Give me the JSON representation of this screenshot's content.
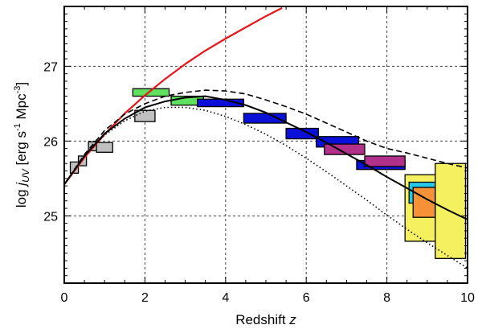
{
  "chart_data": {
    "type": "line",
    "xlabel": "Redshift",
    "xlabel_var": "z",
    "ylabel_prefix": "log ",
    "ylabel_sym": "j",
    "ylabel_sub": "UV",
    "ylabel_unit_a": " [erg s",
    "ylabel_unit_sup1": "-1",
    "ylabel_unit_b": " Mpc",
    "ylabel_unit_sup2": "-3",
    "ylabel_unit_c": "]",
    "xlim": [
      0,
      10
    ],
    "ylim": [
      24.1,
      27.8
    ],
    "grid": true,
    "x_ticks": [
      0,
      2,
      4,
      6,
      8,
      10
    ],
    "y_ticks": [
      25,
      26,
      27
    ],
    "colors": {
      "red_curve": "#e8141b",
      "gray": "#c0c0c0",
      "green": "#5fe05f",
      "blue": "#0a10d8",
      "magenta": "#b0308a",
      "cyan": "#25c8e8",
      "orange": "#f59238",
      "yellow": "#f4f060"
    },
    "series": [
      {
        "style": "red",
        "x": [
          0.0,
          0.5,
          1.0,
          1.5,
          2.0,
          2.5,
          3.0,
          3.5,
          4.0,
          4.5,
          5.0,
          5.4
        ],
        "y": [
          25.42,
          25.78,
          26.09,
          26.37,
          26.61,
          26.83,
          27.03,
          27.21,
          27.37,
          27.52,
          27.67,
          27.78
        ]
      },
      {
        "style": "solid",
        "x": [
          0.0,
          0.5,
          1.0,
          1.5,
          2.0,
          2.5,
          3.0,
          3.5,
          4.0,
          4.5,
          5.0,
          5.5,
          6.0,
          6.5,
          7.0,
          7.5,
          8.0,
          8.5,
          9.0,
          9.5,
          10.0
        ],
        "y": [
          25.42,
          25.8,
          26.1,
          26.3,
          26.45,
          26.53,
          26.58,
          26.6,
          26.55,
          26.48,
          26.38,
          26.25,
          26.12,
          25.98,
          25.83,
          25.68,
          25.52,
          25.37,
          25.22,
          25.08,
          24.95
        ]
      },
      {
        "style": "dashed",
        "x": [
          0.0,
          0.5,
          1.0,
          1.5,
          2.0,
          2.5,
          3.0,
          3.5,
          4.0,
          4.5,
          5.0,
          5.5,
          6.0,
          6.5,
          7.0,
          7.5,
          8.0,
          8.5,
          9.0,
          9.5,
          10.0
        ],
        "y": [
          25.42,
          25.82,
          26.14,
          26.36,
          26.5,
          26.6,
          26.65,
          26.68,
          26.67,
          26.63,
          26.55,
          26.46,
          26.36,
          26.24,
          26.12,
          26.0,
          25.9,
          25.84,
          25.77,
          25.7,
          25.64
        ]
      },
      {
        "style": "dotted",
        "x": [
          0.0,
          0.5,
          1.0,
          1.5,
          2.0,
          2.5,
          3.0,
          3.5,
          4.0,
          4.5,
          5.0,
          5.5,
          6.0,
          6.5,
          7.0,
          7.5,
          8.0,
          8.5,
          9.0,
          9.5,
          10.0
        ],
        "y": [
          25.42,
          25.8,
          26.08,
          26.27,
          26.4,
          26.45,
          26.45,
          26.41,
          26.33,
          26.22,
          26.09,
          25.94,
          25.77,
          25.59,
          25.4,
          25.21,
          25.01,
          24.82,
          24.64,
          24.47,
          24.3
        ]
      }
    ],
    "boxes": [
      {
        "color": "gray",
        "x0": 0.15,
        "x1": 0.35,
        "y0": 25.57,
        "y1": 25.72
      },
      {
        "color": "gray",
        "x0": 0.35,
        "x1": 0.55,
        "y0": 25.67,
        "y1": 25.8
      },
      {
        "color": "gray",
        "x0": 0.6,
        "x1": 0.8,
        "y0": 25.87,
        "y1": 25.99
      },
      {
        "color": "gray",
        "x0": 0.8,
        "x1": 1.2,
        "y0": 25.85,
        "y1": 25.98
      },
      {
        "color": "gray",
        "x0": 1.75,
        "x1": 2.25,
        "y0": 26.26,
        "y1": 26.41
      },
      {
        "color": "green",
        "x0": 1.7,
        "x1": 2.6,
        "y0": 26.6,
        "y1": 26.7
      },
      {
        "color": "green",
        "x0": 2.65,
        "x1": 3.45,
        "y0": 26.48,
        "y1": 26.6
      },
      {
        "color": "blue",
        "x0": 3.3,
        "x1": 4.45,
        "y0": 26.46,
        "y1": 26.56
      },
      {
        "color": "blue",
        "x0": 4.45,
        "x1": 5.5,
        "y0": 26.24,
        "y1": 26.37
      },
      {
        "color": "blue",
        "x0": 5.5,
        "x1": 6.3,
        "y0": 26.03,
        "y1": 26.17
      },
      {
        "color": "blue",
        "x0": 6.25,
        "x1": 7.3,
        "y0": 25.92,
        "y1": 26.06
      },
      {
        "color": "magenta",
        "x0": 6.45,
        "x1": 7.45,
        "y0": 25.82,
        "y1": 25.96
      },
      {
        "color": "blue",
        "x0": 7.25,
        "x1": 8.45,
        "y0": 25.62,
        "y1": 25.74
      },
      {
        "color": "magenta",
        "x0": 7.45,
        "x1": 8.45,
        "y0": 25.66,
        "y1": 25.8
      },
      {
        "color": "yellow",
        "x0": 8.45,
        "x1": 9.45,
        "y0": 24.66,
        "y1": 25.55
      },
      {
        "color": "cyan",
        "x0": 8.55,
        "x1": 9.3,
        "y0": 25.17,
        "y1": 25.45
      },
      {
        "color": "orange",
        "x0": 8.65,
        "x1": 9.2,
        "y0": 24.98,
        "y1": 25.38
      },
      {
        "color": "yellow",
        "x0": 9.2,
        "x1": 9.95,
        "y0": 24.43,
        "y1": 25.7
      }
    ]
  }
}
